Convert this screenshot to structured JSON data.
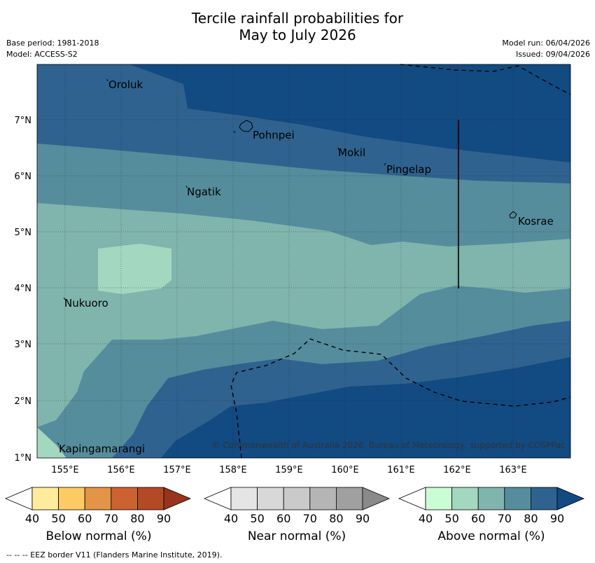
{
  "title_line1": "Tercile rainfall probabilities for",
  "title_line2": "May to July 2026",
  "base_period": "Base period: 1981-2018",
  "model": "Model: ACCESS-S2",
  "model_run": "Model run: 06/04/2026",
  "issued": "Issued: 09/04/2026",
  "map": {
    "lon_labels": [
      "155°E",
      "156°E",
      "157°E",
      "158°E",
      "159°E",
      "160°E",
      "161°E",
      "162°E",
      "163°E"
    ],
    "lat_labels": [
      "7°N",
      "6°N",
      "5°N",
      "4°N",
      "3°N",
      "2°N",
      "1°N"
    ],
    "places": [
      "Oroluk",
      "Pohnpei",
      "Mokil",
      "Pingelap",
      "Ngatik",
      "Kosrae",
      "Nukuoro",
      "Kapingamarangi"
    ],
    "copyright": "© Commonwealth of Australia 2026, Bureau of Meteorology, supported by COSPPac"
  },
  "colorbars": {
    "ticks": [
      "40",
      "50",
      "60",
      "70",
      "80",
      "90"
    ],
    "below": {
      "title": "Below normal (%)",
      "colors": [
        "#ffffff",
        "#ffeb9c",
        "#fdca64",
        "#e39446",
        "#cd6231",
        "#b34a26",
        "#99331c"
      ]
    },
    "near": {
      "title": "Near normal (%)",
      "colors": [
        "#ffffff",
        "#e5e5e5",
        "#d8d8d8",
        "#cacaca",
        "#b5b5b5",
        "#a0a0a0",
        "#8a8a8a"
      ]
    },
    "above": {
      "title": "Above normal (%)",
      "colors": [
        "#ffffff",
        "#cbfdd4",
        "#a3d7bf",
        "#80b5ad",
        "#568d9d",
        "#30628f",
        "#124a82"
      ]
    }
  },
  "footer": "-- -- -- EEZ border V11 (Flanders Marine Institute, 2019)."
}
